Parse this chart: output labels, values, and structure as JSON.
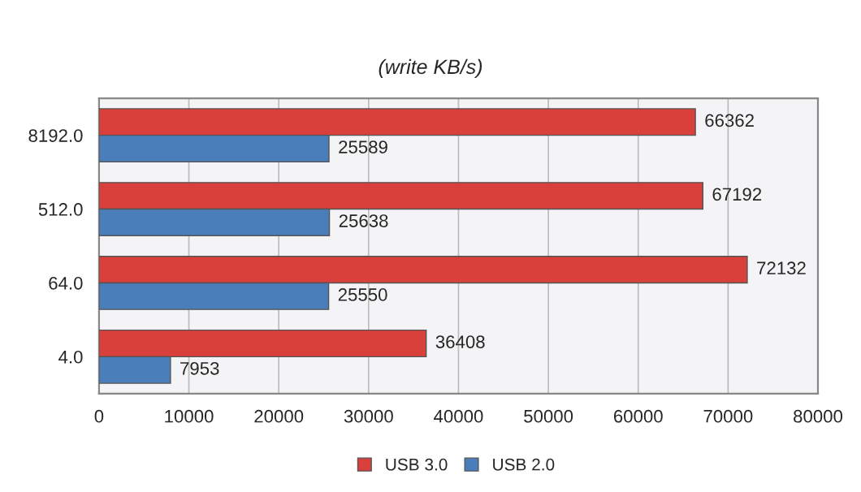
{
  "chart_data": {
    "type": "bar",
    "orientation": "horizontal",
    "subtitle": "(write KB/s)",
    "categories": [
      "8192.0",
      "512.0",
      "64.0",
      "4.0"
    ],
    "series": [
      {
        "name": "USB 3.0",
        "color": "#d9403c",
        "values": [
          66362,
          67192,
          72132,
          36408
        ]
      },
      {
        "name": "USB 2.0",
        "color": "#4a7ebb",
        "values": [
          25589,
          25638,
          25550,
          7953
        ]
      }
    ],
    "xlim": [
      0,
      80000
    ],
    "xticks": [
      0,
      10000,
      20000,
      30000,
      40000,
      50000,
      60000,
      70000,
      80000
    ],
    "grid": "x",
    "legend": "bottom",
    "data_labels": true
  }
}
